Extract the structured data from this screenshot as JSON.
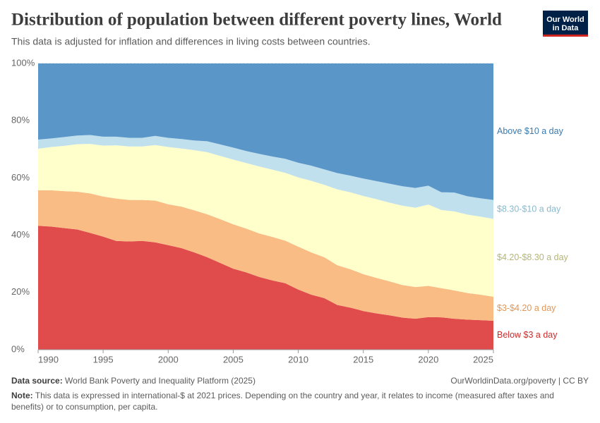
{
  "chart_data": {
    "type": "stacked-area",
    "title": "Distribution of population between different poverty lines, World",
    "subtitle": "This data is adjusted for inflation and differences in living costs between countries.",
    "logo": [
      "Our World",
      "in Data"
    ],
    "source_label": "Data source:",
    "source": "World Bank Poverty and Inequality Platform (2025)",
    "url": "OurWorldinData.org/poverty | CC BY",
    "note_label": "Note:",
    "note": "This data is expressed in international-$ at 2021 prices. Depending on the country and year, it relates to income (measured after taxes and benefits) or to consumption, per capita.",
    "x": [
      1990,
      1991,
      1992,
      1993,
      1994,
      1995,
      1996,
      1997,
      1998,
      1999,
      2000,
      2001,
      2002,
      2003,
      2004,
      2005,
      2006,
      2007,
      2008,
      2009,
      2010,
      2011,
      2012,
      2013,
      2014,
      2015,
      2016,
      2017,
      2018,
      2019,
      2020,
      2021,
      2022,
      2023,
      2024,
      2025
    ],
    "xlim": [
      1990,
      2025
    ],
    "xticks": [
      1990,
      1995,
      2000,
      2005,
      2010,
      2015,
      2020,
      2025
    ],
    "ylim": [
      0,
      100
    ],
    "yticks": [
      {
        "value": 0,
        "label": "0%"
      },
      {
        "value": 20,
        "label": "20%"
      },
      {
        "value": 40,
        "label": "40%"
      },
      {
        "value": 60,
        "label": "60%"
      },
      {
        "value": 80,
        "label": "80%"
      },
      {
        "value": 100,
        "label": "100%"
      }
    ],
    "grid": true,
    "legend": "right",
    "series": [
      {
        "name": "Below $3 a day",
        "color": "#e04b4b",
        "label_color": "#cf2a2a",
        "values": [
          43.3,
          43,
          42.5,
          42,
          40.8,
          39.5,
          38,
          37.8,
          38,
          37.5,
          36.5,
          35.5,
          34,
          32.3,
          30.3,
          28.3,
          27,
          25.4,
          24.2,
          23.2,
          21,
          19.2,
          18,
          15.6,
          14.7,
          13.5,
          12.7,
          12,
          11.2,
          10.8,
          11.4,
          11.3,
          10.8,
          10.5,
          10.3,
          10.1
        ]
      },
      {
        "name": "$3-$4.20 a day",
        "color": "#f9bc85",
        "label_color": "#e0975a",
        "values": [
          12.4,
          12.7,
          12.9,
          13.2,
          13.8,
          14,
          14.8,
          14.5,
          14.3,
          14.6,
          14.3,
          14.5,
          14.7,
          15,
          15.3,
          15.5,
          15.3,
          15.2,
          15.2,
          14.9,
          15,
          14.8,
          14.3,
          13.9,
          13.4,
          12.9,
          12.4,
          11.9,
          11.4,
          11.1,
          10.9,
          10.2,
          9.9,
          9.3,
          8.9,
          8.4
        ]
      },
      {
        "name": "$4.20-$8.30 a day",
        "color": "#ffffcc",
        "label_color": "#b5b57a",
        "values": [
          14.5,
          15.1,
          15.8,
          16.6,
          17.3,
          17.8,
          18.6,
          18.7,
          18.7,
          19.4,
          20,
          20.3,
          21,
          21.7,
          22.1,
          22.6,
          22.9,
          23.4,
          23.5,
          23.7,
          24.2,
          25,
          25.3,
          26.5,
          26.9,
          27.3,
          27.5,
          27.5,
          27.7,
          27.7,
          28.4,
          27.3,
          27.6,
          27.4,
          27.3,
          27.2
        ]
      },
      {
        "name": "$8.30-$10 a day",
        "color": "#c0e0ed",
        "label_color": "#8ab9cc",
        "values": [
          3.2,
          3,
          3.1,
          3,
          3.1,
          3.1,
          3,
          3,
          3,
          3.2,
          3.2,
          3.3,
          3.4,
          3.8,
          4,
          4.2,
          4.2,
          4.4,
          4.6,
          4.9,
          5.1,
          5.3,
          5.4,
          5.7,
          5.8,
          6.1,
          6.3,
          6.6,
          6.8,
          6.9,
          6.6,
          6.2,
          6.6,
          6.4,
          6.4,
          6.6
        ]
      },
      {
        "name": "Above $10 a day",
        "color": "#5a96c8",
        "label_color": "#3b7ab0",
        "values": [
          26.6,
          26.2,
          25.7,
          25.2,
          25,
          25.6,
          25.6,
          26,
          26,
          25.3,
          26,
          26.4,
          26.9,
          27.2,
          28.3,
          29.4,
          30.6,
          31.6,
          32.5,
          33.3,
          34.7,
          35.7,
          37,
          38.3,
          39.2,
          40.2,
          41.1,
          42,
          42.9,
          43.5,
          42.7,
          45,
          45.1,
          46.4,
          47.1,
          47.7
        ]
      }
    ]
  }
}
